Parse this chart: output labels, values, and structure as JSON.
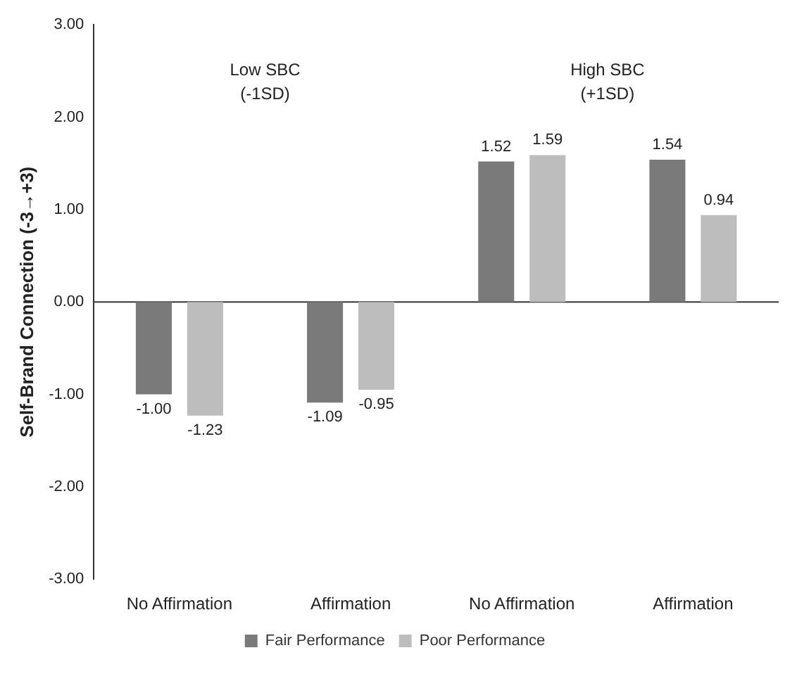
{
  "chart_data": {
    "type": "bar",
    "ylabel": "Self-Brand Connection (-3→+3)",
    "categories": [
      "No Affirmation",
      "Affirmation",
      "No Affirmation",
      "Affirmation"
    ],
    "series": [
      {
        "name": "Fair Performance",
        "color": "#7a7a7a",
        "values": [
          -1.0,
          -1.09,
          1.52,
          1.54
        ],
        "value_labels": [
          "-1.00",
          "-1.09",
          "1.52",
          "1.54"
        ]
      },
      {
        "name": "Poor Performance",
        "color": "#bdbdbd",
        "values": [
          -1.23,
          -0.95,
          1.59,
          0.94
        ],
        "value_labels": [
          "-1.23",
          "-0.95",
          "1.59",
          "0.94"
        ]
      }
    ],
    "annotations": [
      "Low SBC\n(-1SD)",
      "High SBC\n(+1SD)"
    ],
    "ylim": [
      -3,
      3
    ],
    "yticks": [
      {
        "value": -3,
        "label": "-3.00"
      },
      {
        "value": -2,
        "label": "-2.00"
      },
      {
        "value": -1,
        "label": "-1.00"
      },
      {
        "value": 0,
        "label": "0.00"
      },
      {
        "value": 1,
        "label": "1.00"
      },
      {
        "value": 2,
        "label": "2.00"
      },
      {
        "value": 3,
        "label": "3.00"
      }
    ],
    "ref_lines": [
      {
        "axis": "y",
        "value": 0
      }
    ],
    "grid": false,
    "legend": "bottom"
  }
}
